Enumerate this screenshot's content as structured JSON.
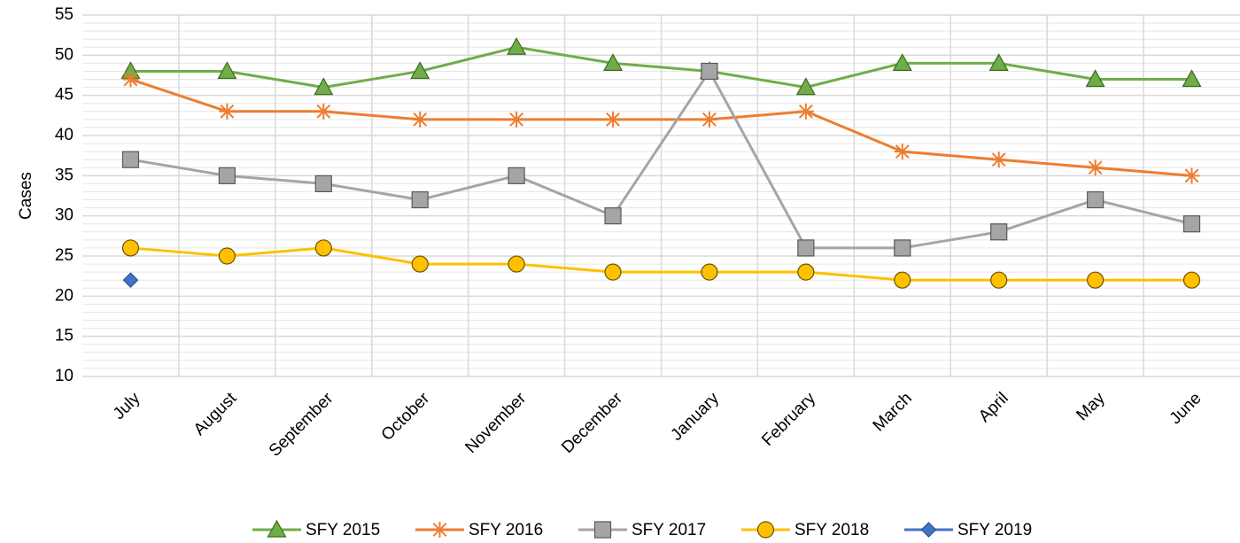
{
  "chart_data": {
    "type": "line",
    "ylabel": "Cases",
    "categories": [
      "July",
      "August",
      "September",
      "October",
      "November",
      "December",
      "January",
      "February",
      "March",
      "April",
      "May",
      "June"
    ],
    "series": [
      {
        "name": "SFY 2015",
        "color": "#70ad47",
        "marker": "triangle",
        "values": [
          48,
          48,
          46,
          48,
          51,
          49,
          48,
          46,
          49,
          49,
          47,
          47
        ]
      },
      {
        "name": "SFY 2016",
        "color": "#ed7d31",
        "marker": "star",
        "values": [
          47,
          43,
          43,
          42,
          42,
          42,
          42,
          43,
          38,
          37,
          36,
          35
        ]
      },
      {
        "name": "SFY 2017",
        "color": "#a5a5a5",
        "marker": "square",
        "values": [
          37,
          35,
          34,
          32,
          35,
          30,
          48,
          26,
          26,
          28,
          32,
          29
        ]
      },
      {
        "name": "SFY 2018",
        "color": "#ffc000",
        "marker": "circle",
        "values": [
          26,
          25,
          26,
          24,
          24,
          23,
          23,
          23,
          22,
          22,
          22,
          22
        ]
      },
      {
        "name": "SFY 2019",
        "color": "#4472c4",
        "marker": "diamond",
        "values": [
          22,
          null,
          null,
          null,
          null,
          null,
          null,
          null,
          null,
          null,
          null,
          null
        ]
      }
    ],
    "ylim": [
      10,
      55
    ],
    "yticks": [
      10,
      15,
      20,
      25,
      30,
      35,
      40,
      45,
      50,
      55
    ],
    "grid": true,
    "legend": "bottom"
  }
}
